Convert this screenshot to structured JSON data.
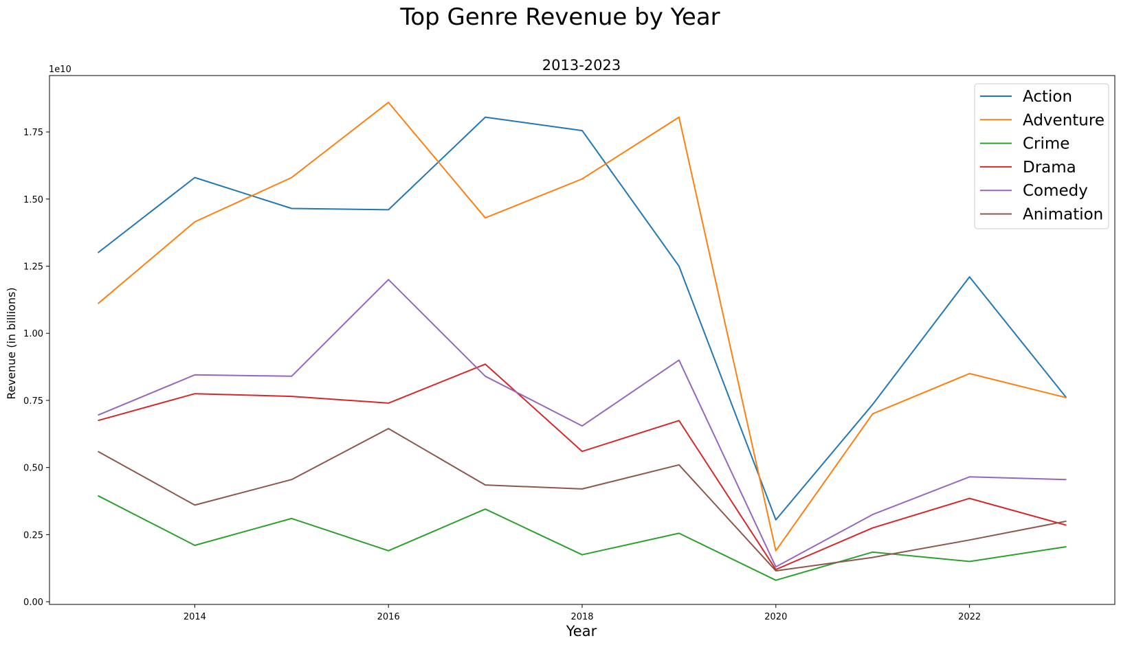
{
  "figure": {
    "title": "Top Genre Revenue by Year"
  },
  "chart_data": {
    "type": "line",
    "title": "2013-2023",
    "xlabel": "Year",
    "ylabel": "Revenue (in billions)",
    "y_offset_text": "1e10",
    "x": [
      2013,
      2014,
      2015,
      2016,
      2017,
      2018,
      2019,
      2020,
      2021,
      2022,
      2023
    ],
    "xlim": [
      2012.5,
      2023.5
    ],
    "ylim": [
      -0.01,
      1.96
    ],
    "y_units": "1e10",
    "x_ticks": [
      2014,
      2016,
      2018,
      2020,
      2022
    ],
    "x_tick_labels": [
      "2014",
      "2016",
      "2018",
      "2020",
      "2022"
    ],
    "y_ticks": [
      0,
      0.25,
      0.5,
      0.75,
      1.0,
      1.25,
      1.5,
      1.75
    ],
    "y_tick_labels": [
      "0.00",
      "0.25",
      "0.50",
      "0.75",
      "1.00",
      "1.25",
      "1.50",
      "1.75"
    ],
    "grid": false,
    "legend_position": "upper right",
    "series": [
      {
        "name": "Action",
        "color": "#1f77b4",
        "values": [
          1.3,
          1.58,
          1.465,
          1.46,
          1.805,
          1.755,
          1.25,
          0.305,
          0.735,
          1.21,
          0.76
        ]
      },
      {
        "name": "Adventure",
        "color": "#ff7f0e",
        "values": [
          1.11,
          1.415,
          1.58,
          1.86,
          1.43,
          1.575,
          1.805,
          0.19,
          0.7,
          0.85,
          0.76
        ]
      },
      {
        "name": "Crime",
        "color": "#2ca02c",
        "values": [
          0.395,
          0.21,
          0.31,
          0.19,
          0.345,
          0.175,
          0.255,
          0.08,
          0.185,
          0.15,
          0.205
        ]
      },
      {
        "name": "Drama",
        "color": "#d62728",
        "values": [
          0.675,
          0.775,
          0.765,
          0.74,
          0.885,
          0.56,
          0.675,
          0.12,
          0.275,
          0.385,
          0.285
        ]
      },
      {
        "name": "Comedy",
        "color": "#9467bd",
        "values": [
          0.695,
          0.845,
          0.84,
          1.2,
          0.84,
          0.655,
          0.9,
          0.13,
          0.325,
          0.465,
          0.455
        ]
      },
      {
        "name": "Animation",
        "color": "#8c564b",
        "values": [
          0.56,
          0.36,
          0.455,
          0.645,
          0.435,
          0.42,
          0.51,
          0.115,
          0.165,
          0.23,
          0.3
        ]
      }
    ]
  }
}
